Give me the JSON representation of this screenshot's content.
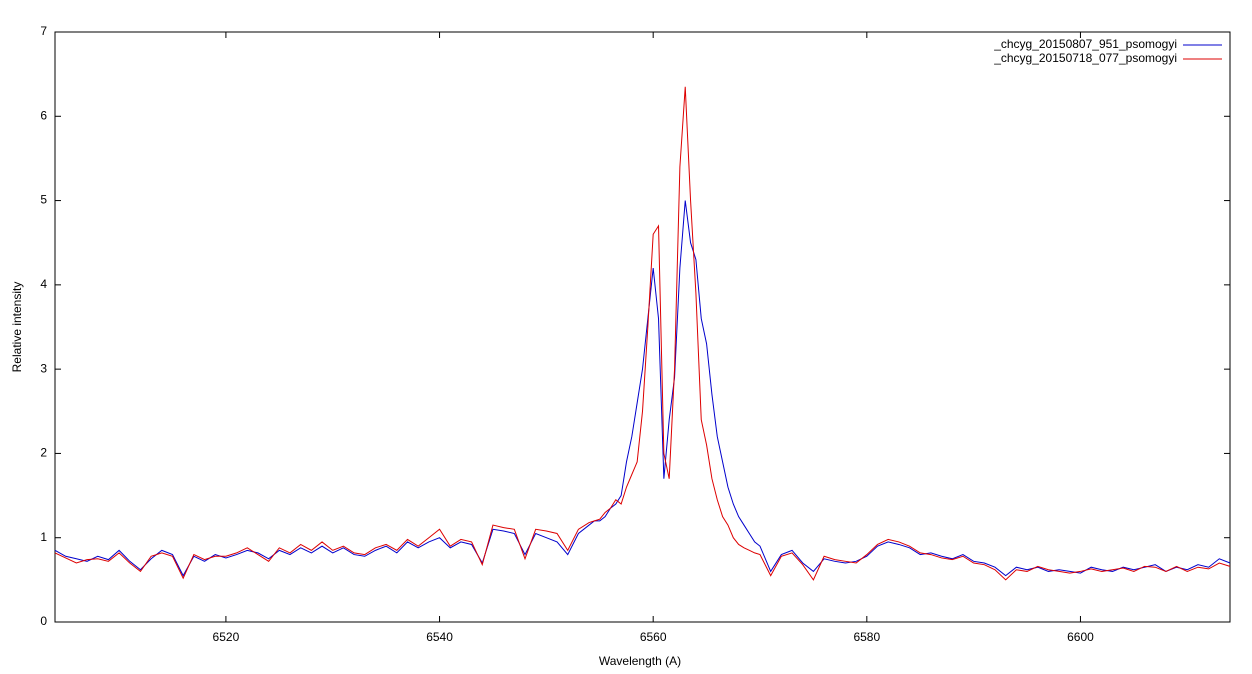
{
  "chart_data": {
    "type": "line",
    "xlabel": "Wavelength (A)",
    "ylabel": "Relative intensity",
    "xlim": [
      6504,
      6614
    ],
    "ylim": [
      0,
      7
    ],
    "xticks": [
      6520,
      6540,
      6560,
      6580,
      6600
    ],
    "yticks": [
      0,
      1,
      2,
      3,
      4,
      5,
      6,
      7
    ],
    "legend": "upper right",
    "x": [
      6504,
      6505,
      6506,
      6507,
      6508,
      6509,
      6510,
      6511,
      6512,
      6513,
      6514,
      6515,
      6516,
      6517,
      6518,
      6519,
      6520,
      6521,
      6522,
      6523,
      6524,
      6525,
      6526,
      6527,
      6528,
      6529,
      6530,
      6531,
      6532,
      6533,
      6534,
      6535,
      6536,
      6537,
      6538,
      6539,
      6540,
      6541,
      6542,
      6543,
      6544,
      6545,
      6546,
      6547,
      6548,
      6549,
      6550,
      6551,
      6552,
      6553,
      6554,
      6554.5,
      6555,
      6555.5,
      6556,
      6556.5,
      6557,
      6557.5,
      6558,
      6558.5,
      6559,
      6559.5,
      6560,
      6560.5,
      6561,
      6561.5,
      6562,
      6562.5,
      6563,
      6563.5,
      6564,
      6564.5,
      6565,
      6565.5,
      6566,
      6566.5,
      6567,
      6567.5,
      6568,
      6568.5,
      6569,
      6569.5,
      6570,
      6571,
      6572,
      6573,
      6574,
      6575,
      6576,
      6577,
      6578,
      6579,
      6580,
      6581,
      6582,
      6583,
      6584,
      6585,
      6586,
      6587,
      6588,
      6589,
      6590,
      6591,
      6592,
      6593,
      6594,
      6595,
      6596,
      6597,
      6598,
      6599,
      6600,
      6601,
      6602,
      6603,
      6604,
      6605,
      6606,
      6607,
      6608,
      6609,
      6610,
      6611,
      6612,
      6613,
      6614
    ],
    "series": [
      {
        "name": "_chcyg_20150807_951_psomogyi",
        "color": "#0000cc",
        "values": [
          0.85,
          0.78,
          0.75,
          0.72,
          0.78,
          0.74,
          0.85,
          0.72,
          0.62,
          0.75,
          0.85,
          0.8,
          0.55,
          0.78,
          0.72,
          0.8,
          0.76,
          0.8,
          0.85,
          0.82,
          0.75,
          0.85,
          0.8,
          0.88,
          0.82,
          0.9,
          0.82,
          0.88,
          0.8,
          0.78,
          0.85,
          0.9,
          0.82,
          0.95,
          0.88,
          0.95,
          1.0,
          0.88,
          0.95,
          0.92,
          0.7,
          1.1,
          1.08,
          1.05,
          0.8,
          1.05,
          1.0,
          0.95,
          0.8,
          1.05,
          1.15,
          1.2,
          1.2,
          1.25,
          1.35,
          1.4,
          1.5,
          1.9,
          2.2,
          2.6,
          3.0,
          3.6,
          4.2,
          3.6,
          1.7,
          2.4,
          2.9,
          4.2,
          5.0,
          4.5,
          4.3,
          3.6,
          3.3,
          2.7,
          2.2,
          1.9,
          1.6,
          1.4,
          1.25,
          1.15,
          1.05,
          0.95,
          0.9,
          0.6,
          0.8,
          0.85,
          0.7,
          0.6,
          0.75,
          0.72,
          0.7,
          0.72,
          0.78,
          0.9,
          0.95,
          0.92,
          0.88,
          0.8,
          0.82,
          0.78,
          0.75,
          0.8,
          0.72,
          0.7,
          0.65,
          0.55,
          0.65,
          0.62,
          0.65,
          0.6,
          0.62,
          0.6,
          0.58,
          0.65,
          0.62,
          0.6,
          0.65,
          0.62,
          0.65,
          0.68,
          0.6,
          0.65,
          0.62,
          0.68,
          0.65,
          0.75,
          0.7
        ]
      },
      {
        "name": "_chcyg_20150718_077_psomogyi",
        "color": "#dd0000",
        "values": [
          0.82,
          0.76,
          0.7,
          0.74,
          0.75,
          0.72,
          0.82,
          0.7,
          0.6,
          0.78,
          0.82,
          0.78,
          0.52,
          0.8,
          0.74,
          0.78,
          0.78,
          0.82,
          0.88,
          0.8,
          0.72,
          0.88,
          0.82,
          0.92,
          0.85,
          0.95,
          0.85,
          0.9,
          0.82,
          0.8,
          0.88,
          0.92,
          0.85,
          0.98,
          0.9,
          1.0,
          1.1,
          0.9,
          0.98,
          0.95,
          0.68,
          1.15,
          1.12,
          1.1,
          0.75,
          1.1,
          1.08,
          1.05,
          0.85,
          1.1,
          1.18,
          1.2,
          1.22,
          1.3,
          1.35,
          1.45,
          1.4,
          1.6,
          1.75,
          1.9,
          2.5,
          3.5,
          4.6,
          4.7,
          2.0,
          1.7,
          3.0,
          5.4,
          6.35,
          5.0,
          3.9,
          2.4,
          2.1,
          1.7,
          1.45,
          1.25,
          1.15,
          1.0,
          0.92,
          0.88,
          0.85,
          0.82,
          0.8,
          0.55,
          0.78,
          0.82,
          0.68,
          0.5,
          0.78,
          0.74,
          0.72,
          0.7,
          0.8,
          0.92,
          0.98,
          0.95,
          0.9,
          0.82,
          0.8,
          0.76,
          0.74,
          0.78,
          0.7,
          0.68,
          0.62,
          0.5,
          0.62,
          0.6,
          0.66,
          0.62,
          0.6,
          0.58,
          0.6,
          0.63,
          0.6,
          0.62,
          0.64,
          0.6,
          0.66,
          0.65,
          0.6,
          0.66,
          0.6,
          0.65,
          0.63,
          0.7,
          0.66
        ]
      }
    ]
  }
}
